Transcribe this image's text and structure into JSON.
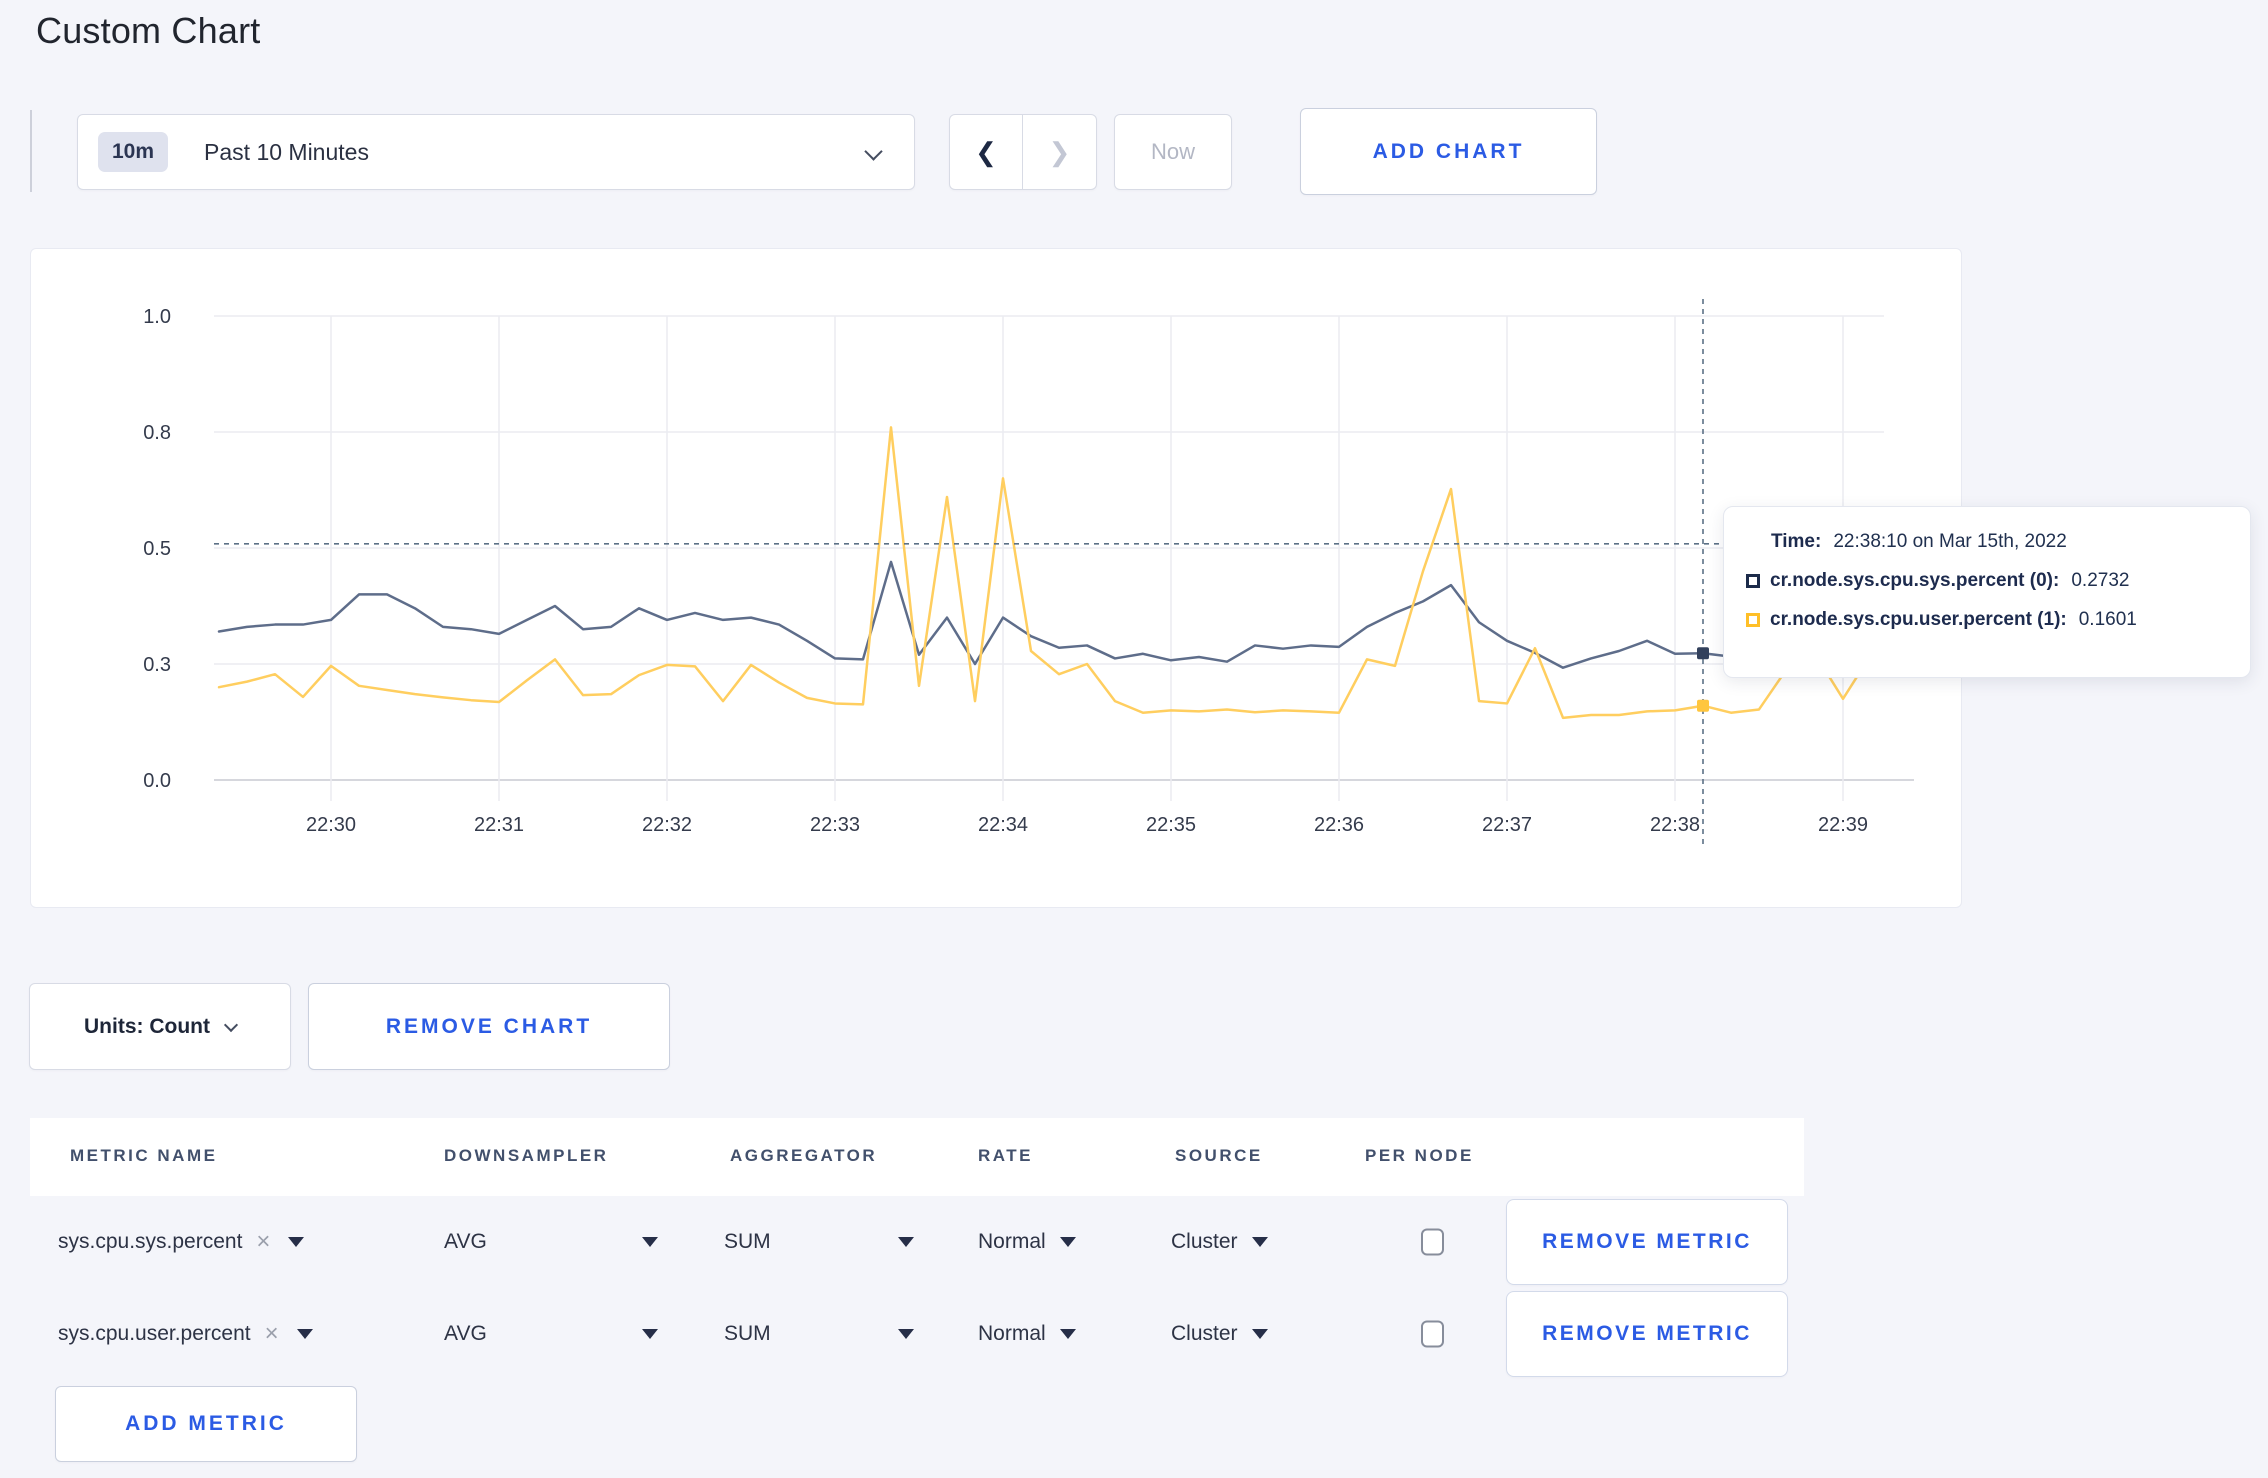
{
  "page": {
    "title": "Custom Chart"
  },
  "colors": {
    "accent_blue": "#2b5be4",
    "series_sys": "#5e6d8a",
    "series_user": "#ffce5f",
    "swatch_sys": "#1c2b4a",
    "swatch_user": "#ffbf27",
    "page_background": "#f4f5fa"
  },
  "toolbar": {
    "range_badge": "10m",
    "range_label": "Past 10 Minutes",
    "prev_icon": "❮",
    "next_icon": "❯",
    "now_label": "Now",
    "add_chart_label": "ADD CHART"
  },
  "chart_data": {
    "type": "line",
    "title": "",
    "xlabel": "",
    "ylabel": "",
    "grid": true,
    "legend_position": "tooltip",
    "ylim": [
      0,
      1
    ],
    "x_window": "22:29:20 - 22:39:15",
    "y_ticks": [
      {
        "label": "0.0",
        "v": 0
      },
      {
        "label": "0.3",
        "v": 0.25
      },
      {
        "label": "0.5",
        "v": 0.5
      },
      {
        "label": "0.8",
        "v": 0.75
      },
      {
        "label": "1.0",
        "v": 1.0
      }
    ],
    "x_ticks": [
      {
        "label": "22:30",
        "t": 0
      },
      {
        "label": "22:31",
        "t": 60
      },
      {
        "label": "22:32",
        "t": 120
      },
      {
        "label": "22:33",
        "t": 180
      },
      {
        "label": "22:34",
        "t": 240
      },
      {
        "label": "22:35",
        "t": 300
      },
      {
        "label": "22:36",
        "t": 360
      },
      {
        "label": "22:37",
        "t": 420
      },
      {
        "label": "22:38",
        "t": 480
      },
      {
        "label": "22:39",
        "t": 540
      }
    ],
    "series": [
      {
        "name": "cr.node.sys.cpu.sys.percent (0)",
        "color": "#5e6d8a",
        "marker_color": "#32405c",
        "points": [
          [
            -40,
            0.32
          ],
          [
            -30,
            0.33
          ],
          [
            -20,
            0.335
          ],
          [
            -10,
            0.335
          ],
          [
            0,
            0.345
          ],
          [
            10,
            0.4
          ],
          [
            20,
            0.4
          ],
          [
            30,
            0.37
          ],
          [
            40,
            0.33
          ],
          [
            50,
            0.325
          ],
          [
            60,
            0.315
          ],
          [
            70,
            0.345
          ],
          [
            80,
            0.375
          ],
          [
            90,
            0.325
          ],
          [
            100,
            0.33
          ],
          [
            110,
            0.37
          ],
          [
            120,
            0.345
          ],
          [
            130,
            0.36
          ],
          [
            140,
            0.345
          ],
          [
            150,
            0.35
          ],
          [
            160,
            0.335
          ],
          [
            170,
            0.3
          ],
          [
            180,
            0.262
          ],
          [
            190,
            0.26
          ],
          [
            200,
            0.47
          ],
          [
            210,
            0.27
          ],
          [
            220,
            0.35
          ],
          [
            230,
            0.25
          ],
          [
            240,
            0.35
          ],
          [
            250,
            0.31
          ],
          [
            260,
            0.285
          ],
          [
            270,
            0.29
          ],
          [
            280,
            0.262
          ],
          [
            290,
            0.272
          ],
          [
            300,
            0.258
          ],
          [
            310,
            0.265
          ],
          [
            320,
            0.255
          ],
          [
            330,
            0.29
          ],
          [
            340,
            0.283
          ],
          [
            350,
            0.29
          ],
          [
            360,
            0.287
          ],
          [
            370,
            0.33
          ],
          [
            380,
            0.36
          ],
          [
            390,
            0.385
          ],
          [
            400,
            0.42
          ],
          [
            410,
            0.34
          ],
          [
            420,
            0.3
          ],
          [
            430,
            0.274
          ],
          [
            440,
            0.242
          ],
          [
            450,
            0.262
          ],
          [
            460,
            0.278
          ],
          [
            470,
            0.3
          ],
          [
            480,
            0.272
          ],
          [
            490,
            0.2732
          ],
          [
            500,
            0.266
          ],
          [
            510,
            0.254
          ],
          [
            520,
            0.27
          ],
          [
            530,
            0.292
          ],
          [
            540,
            0.28
          ],
          [
            550,
            0.3
          ]
        ]
      },
      {
        "name": "cr.node.sys.cpu.user.percent (1)",
        "color": "#ffce5f",
        "marker_color": "#ffc63e",
        "points": [
          [
            -40,
            0.2
          ],
          [
            -30,
            0.212
          ],
          [
            -20,
            0.228
          ],
          [
            -10,
            0.179
          ],
          [
            0,
            0.246
          ],
          [
            10,
            0.203
          ],
          [
            20,
            0.194
          ],
          [
            30,
            0.185
          ],
          [
            40,
            0.178
          ],
          [
            50,
            0.172
          ],
          [
            60,
            0.168
          ],
          [
            70,
            0.215
          ],
          [
            80,
            0.26
          ],
          [
            90,
            0.183
          ],
          [
            100,
            0.185
          ],
          [
            110,
            0.226
          ],
          [
            120,
            0.248
          ],
          [
            130,
            0.245
          ],
          [
            140,
            0.17
          ],
          [
            150,
            0.248
          ],
          [
            160,
            0.21
          ],
          [
            170,
            0.177
          ],
          [
            180,
            0.165
          ],
          [
            190,
            0.163
          ],
          [
            200,
            0.76
          ],
          [
            210,
            0.203
          ],
          [
            220,
            0.61
          ],
          [
            230,
            0.17
          ],
          [
            240,
            0.65
          ],
          [
            250,
            0.278
          ],
          [
            260,
            0.228
          ],
          [
            270,
            0.25
          ],
          [
            280,
            0.17
          ],
          [
            290,
            0.145
          ],
          [
            300,
            0.15
          ],
          [
            310,
            0.148
          ],
          [
            320,
            0.152
          ],
          [
            330,
            0.146
          ],
          [
            340,
            0.15
          ],
          [
            350,
            0.148
          ],
          [
            360,
            0.145
          ],
          [
            370,
            0.26
          ],
          [
            380,
            0.246
          ],
          [
            390,
            0.45
          ],
          [
            400,
            0.627
          ],
          [
            410,
            0.17
          ],
          [
            420,
            0.165
          ],
          [
            430,
            0.284
          ],
          [
            440,
            0.134
          ],
          [
            450,
            0.14
          ],
          [
            460,
            0.14
          ],
          [
            470,
            0.148
          ],
          [
            480,
            0.15
          ],
          [
            490,
            0.1601
          ],
          [
            500,
            0.145
          ],
          [
            510,
            0.152
          ],
          [
            520,
            0.24
          ],
          [
            530,
            0.272
          ],
          [
            540,
            0.175
          ],
          [
            550,
            0.27
          ]
        ]
      }
    ],
    "crosshair": {
      "t": 490,
      "y_value": 0.509
    },
    "markers": [
      {
        "series": 0,
        "t": 490,
        "v": 0.2732
      },
      {
        "series": 1,
        "t": 490,
        "v": 0.1601
      }
    ]
  },
  "tooltip": {
    "time_label": "Time:",
    "time_value": "22:38:10 on Mar 15th, 2022",
    "rows": [
      {
        "swatch_color": "#1c2b4a",
        "label": "cr.node.sys.cpu.sys.percent (0):",
        "value": "0.2732"
      },
      {
        "swatch_color": "#ffbf27",
        "label": "cr.node.sys.cpu.user.percent (1):",
        "value": "0.1601"
      }
    ]
  },
  "units_row": {
    "units_label": "Units: Count",
    "remove_chart_label": "REMOVE CHART"
  },
  "table": {
    "headers": [
      "METRIC NAME",
      "DOWNSAMPLER",
      "AGGREGATOR",
      "RATE",
      "SOURCE",
      "PER NODE"
    ],
    "rows": [
      {
        "metric": "sys.cpu.sys.percent",
        "remove_icon": "×",
        "downsampler": "AVG",
        "aggregator": "SUM",
        "rate": "Normal",
        "source": "Cluster",
        "per_node_checked": false,
        "remove_label": "REMOVE METRIC"
      },
      {
        "metric": "sys.cpu.user.percent",
        "remove_icon": "×",
        "downsampler": "AVG",
        "aggregator": "SUM",
        "rate": "Normal",
        "source": "Cluster",
        "per_node_checked": false,
        "remove_label": "REMOVE METRIC"
      }
    ],
    "add_metric_label": "ADD METRIC"
  }
}
